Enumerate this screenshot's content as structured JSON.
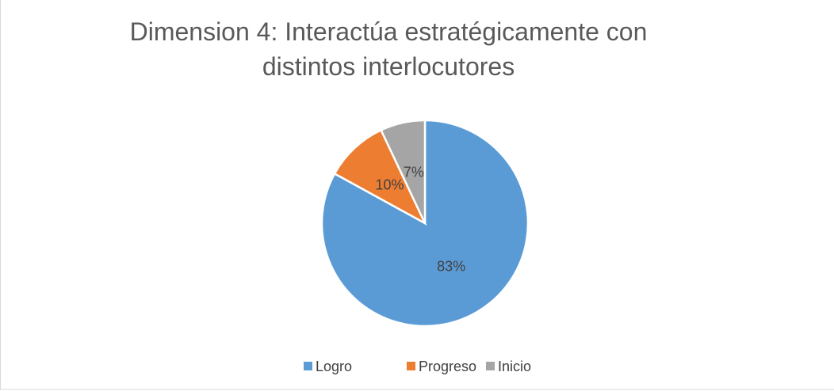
{
  "chart_data": {
    "type": "pie",
    "title": "Dimension 4: Interactúa estratégicamente con distintos interlocutores",
    "categories": [
      "Logro",
      "Progreso",
      "Inicio"
    ],
    "values": [
      83,
      10,
      7
    ],
    "value_labels": [
      "83%",
      "10%",
      "7%"
    ],
    "colors": [
      "#5b9bd5",
      "#ed7d31",
      "#a5a5a5"
    ],
    "legend": "bottom"
  }
}
